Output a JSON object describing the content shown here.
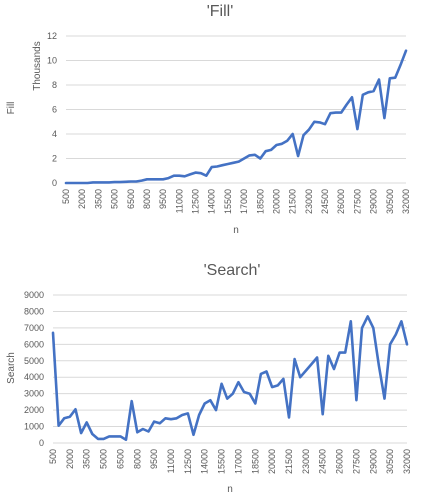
{
  "chart_data": [
    {
      "type": "line",
      "title": "'Fill'",
      "xlabel": "n",
      "ylabel": "Fill",
      "display_units_label": "Thousands",
      "x_ticks": [
        500,
        2000,
        3500,
        5000,
        6500,
        8000,
        9500,
        11000,
        12500,
        14000,
        15500,
        17000,
        18500,
        20000,
        21500,
        23000,
        24500,
        26000,
        27500,
        29000,
        30500,
        32000
      ],
      "x_tick_labels": [
        "500",
        "2000",
        "3500",
        "5000",
        "6500",
        "8000",
        "9500",
        "11000",
        "12500",
        "14000",
        "15500",
        "17000",
        "18500",
        "20000",
        "21500",
        "23000",
        "24500",
        "26000",
        "27500",
        "29000",
        "30500",
        "32000"
      ],
      "y_ticks": [
        0,
        2,
        4,
        6,
        8,
        10,
        12
      ],
      "ylim": [
        0,
        12
      ],
      "grid": true,
      "legend": "none",
      "color": "#4472c4",
      "x": [
        500,
        1000,
        1500,
        2000,
        2500,
        3000,
        3500,
        4000,
        4500,
        5000,
        5500,
        6000,
        6500,
        7000,
        7500,
        8000,
        8500,
        9000,
        9500,
        10000,
        10500,
        11000,
        11500,
        12000,
        12500,
        13000,
        13500,
        14000,
        14500,
        15000,
        15500,
        16000,
        16500,
        17000,
        17500,
        18000,
        18500,
        19000,
        19500,
        20000,
        20500,
        21000,
        21500,
        22000,
        22500,
        23000,
        23500,
        24000,
        24500,
        25000,
        25500,
        26000,
        26500,
        27000,
        27500,
        28000,
        28500,
        29000,
        29500,
        30000,
        30500,
        31000,
        31500,
        32000
      ],
      "values": [
        0.0,
        0.0,
        0.0,
        0.0,
        0.0,
        0.05,
        0.05,
        0.05,
        0.05,
        0.07,
        0.07,
        0.1,
        0.12,
        0.12,
        0.2,
        0.3,
        0.3,
        0.3,
        0.3,
        0.4,
        0.6,
        0.6,
        0.55,
        0.7,
        0.85,
        0.8,
        0.6,
        1.3,
        1.35,
        1.45,
        1.55,
        1.65,
        1.75,
        2.0,
        2.25,
        2.3,
        2.0,
        2.6,
        2.7,
        3.1,
        3.2,
        3.45,
        4.0,
        2.2,
        3.9,
        4.35,
        5.0,
        4.95,
        4.8,
        5.7,
        5.75,
        5.75,
        6.4,
        7.0,
        4.4,
        7.2,
        7.4,
        7.5,
        8.45,
        5.3,
        8.55,
        8.6,
        9.65,
        10.8
      ]
    },
    {
      "type": "line",
      "title": "'Search'",
      "xlabel": "n",
      "ylabel": "Search",
      "x_ticks": [
        500,
        2000,
        3500,
        5000,
        6500,
        8000,
        9500,
        11000,
        12500,
        14000,
        15500,
        17000,
        18500,
        20000,
        21500,
        23000,
        24500,
        26000,
        27500,
        29000,
        30500,
        32000
      ],
      "x_tick_labels": [
        "500",
        "2000",
        "3500",
        "5000",
        "6500",
        "8000",
        "9500",
        "11000",
        "12500",
        "14000",
        "15500",
        "17000",
        "18500",
        "20000",
        "21500",
        "23000",
        "24500",
        "26000",
        "27500",
        "29000",
        "30500",
        "32000"
      ],
      "y_ticks": [
        0,
        1000,
        2000,
        3000,
        4000,
        5000,
        6000,
        7000,
        8000,
        9000
      ],
      "ylim": [
        0,
        9000
      ],
      "grid": true,
      "legend": "none",
      "color": "#4472c4",
      "x": [
        500,
        1000,
        1500,
        2000,
        2500,
        3000,
        3500,
        4000,
        4500,
        5000,
        5500,
        6000,
        6500,
        7000,
        7500,
        8000,
        8500,
        9000,
        9500,
        10000,
        10500,
        11000,
        11500,
        12000,
        12500,
        13000,
        13500,
        14000,
        14500,
        15000,
        15500,
        16000,
        16500,
        17000,
        17500,
        18000,
        18500,
        19000,
        19500,
        20000,
        20500,
        21000,
        21500,
        22000,
        22500,
        23000,
        23500,
        24000,
        24500,
        25000,
        25500,
        26000,
        26500,
        27000,
        27500,
        28000,
        28500,
        29000,
        29500,
        30000,
        30500,
        31000,
        31500,
        32000
      ],
      "values": [
        6700,
        1050,
        1500,
        1600,
        2050,
        600,
        1250,
        550,
        250,
        250,
        400,
        400,
        400,
        200,
        2550,
        650,
        850,
        700,
        1300,
        1200,
        1500,
        1450,
        1500,
        1700,
        1800,
        500,
        1700,
        2400,
        2600,
        2000,
        3600,
        2700,
        3000,
        3700,
        3100,
        3000,
        2400,
        4200,
        4350,
        3400,
        3500,
        3900,
        1550,
        5100,
        4000,
        4400,
        4800,
        5200,
        1750,
        5300,
        4500,
        5500,
        5500,
        7400,
        2600,
        7000,
        7700,
        7000,
        4700,
        2700,
        6000,
        6600,
        7400,
        6000
      ]
    }
  ]
}
